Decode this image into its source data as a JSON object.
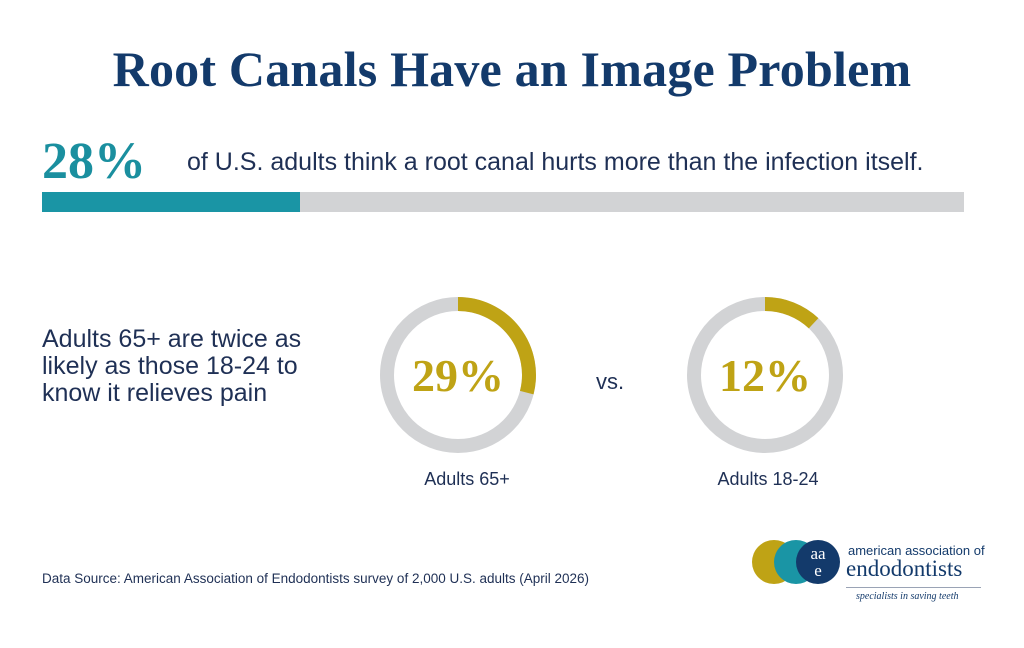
{
  "title": "Root Canals Have an Image Problem",
  "headline_stat": {
    "value_label": "28%",
    "text": "of U.S. adults think a root canal hurts more than the infection itself.",
    "fraction": 0.28
  },
  "comparison": {
    "text": "Adults 65+ are twice as likely as those 18-24 to know it relieves pain",
    "vs_label": "vs."
  },
  "chart_data": {
    "type": "pie",
    "series": [
      {
        "name": "Adults 65+",
        "value": 29,
        "label": "29%"
      },
      {
        "name": "Adults 18-24",
        "value": 12,
        "label": "12%"
      }
    ],
    "max": 100
  },
  "source": "Data Source: American Association of Endodontists survey of 2,000 U.S. adults (April 2026)",
  "logo": {
    "monogram": "aae",
    "line1": "american association of",
    "line2": "endodontists",
    "tagline": "specialists in saving teeth"
  },
  "colors": {
    "title": "#133a6b",
    "teal": "#1a95a5",
    "gold": "#bfa315",
    "track": "#d2d3d5",
    "text": "#1f3055"
  }
}
